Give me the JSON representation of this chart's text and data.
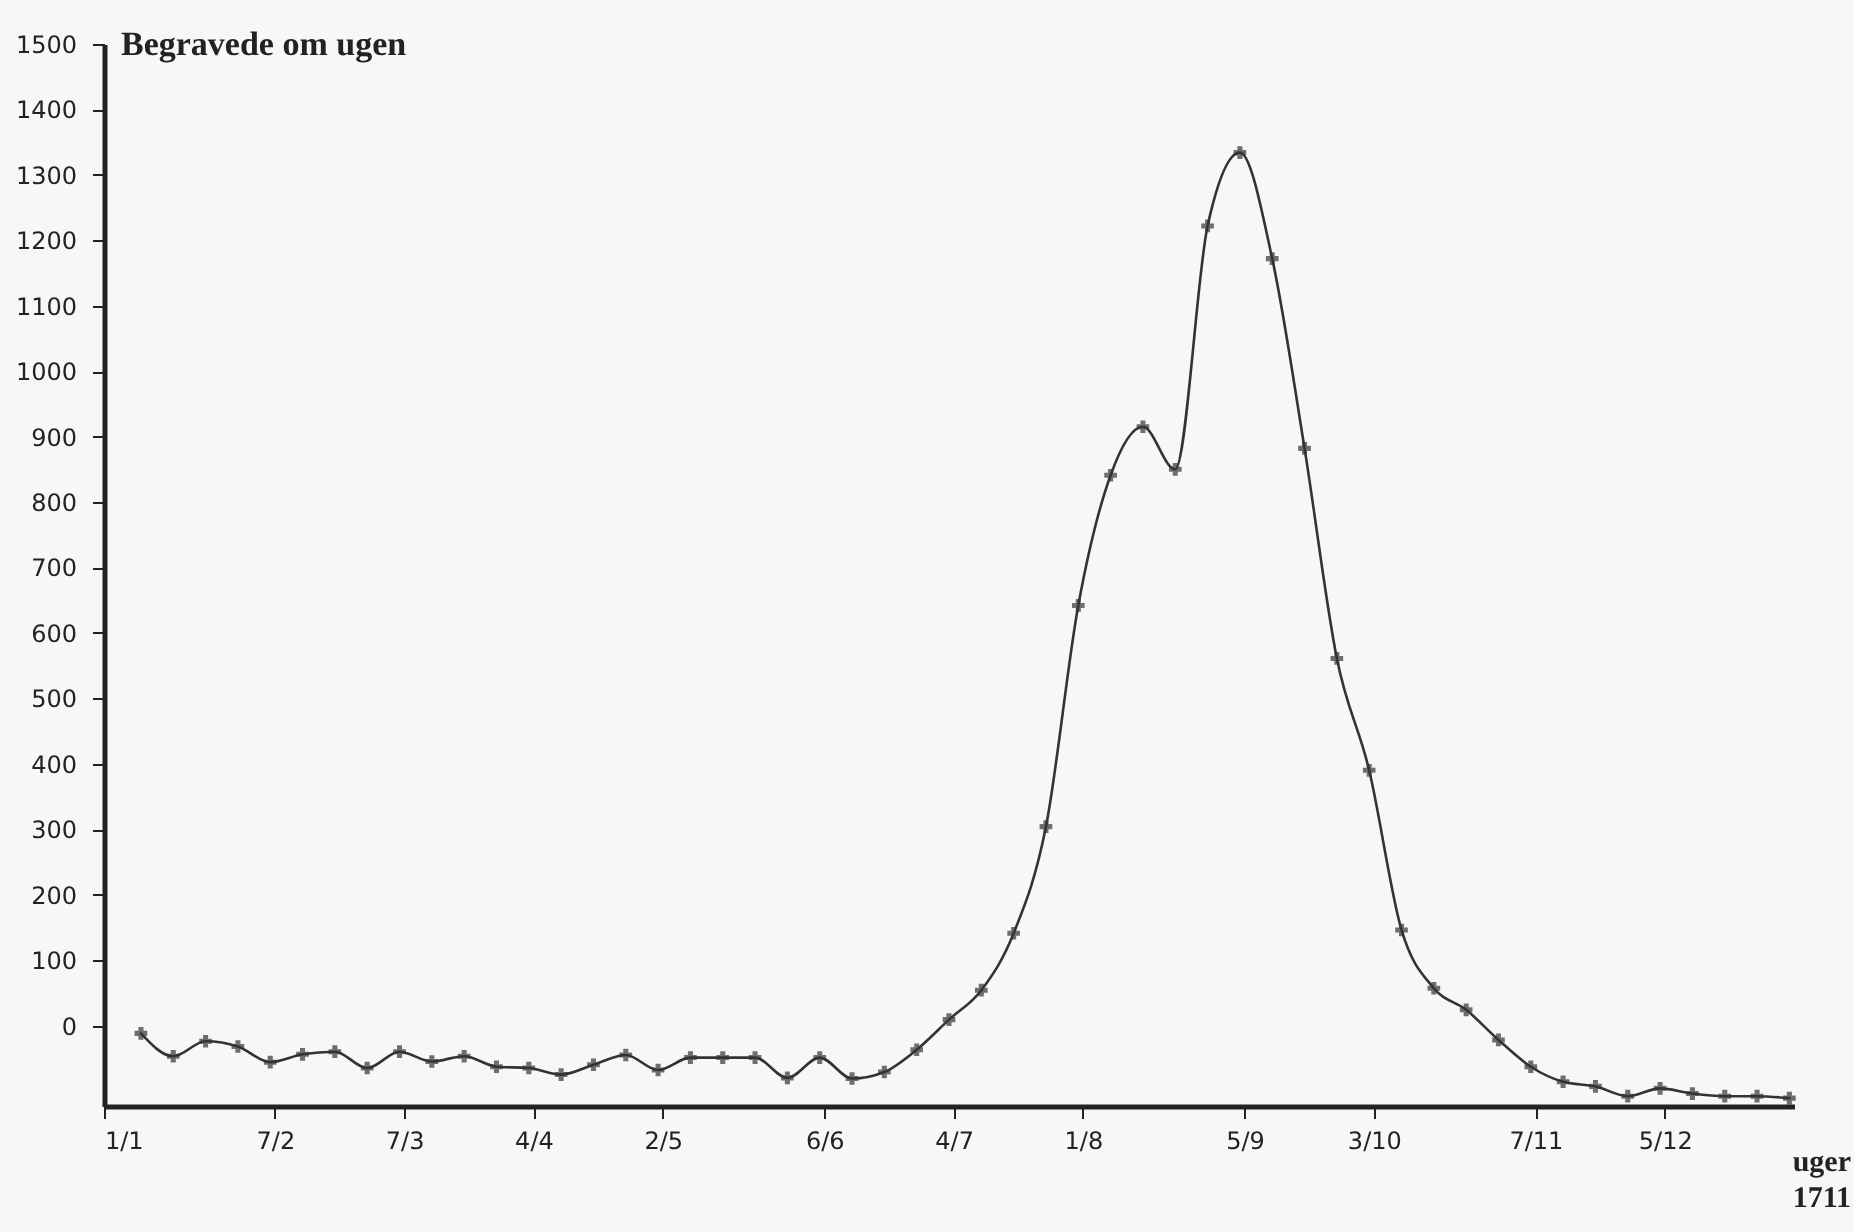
{
  "chart_data": {
    "type": "line",
    "ylabel": "Begravede om ugen",
    "xlabel": "uger 1711",
    "x": [
      "1711-01-09",
      "1711-01-16",
      "1711-01-23",
      "1711-01-30",
      "1711-02-06",
      "1711-02-13",
      "1711-02-20",
      "1711-02-27",
      "1711-03-06",
      "1711-03-13",
      "1711-03-20",
      "1711-03-27",
      "1711-04-03",
      "1711-04-10",
      "1711-04-17",
      "1711-04-24",
      "1711-05-01",
      "1711-05-08",
      "1711-05-15",
      "1711-05-22",
      "1711-05-29",
      "1711-06-05",
      "1711-06-12",
      "1711-06-19",
      "1711-06-26",
      "1711-07-03",
      "1711-07-10",
      "1711-07-17",
      "1711-07-24",
      "1711-07-31",
      "1711-08-07",
      "1711-08-14",
      "1711-08-21",
      "1711-08-28",
      "1711-09-04",
      "1711-09-11",
      "1711-09-18",
      "1711-09-25",
      "1711-10-02",
      "1711-10-09",
      "1711-10-16",
      "1711-10-23",
      "1711-10-30",
      "1711-11-06",
      "1711-11-13",
      "1711-11-20",
      "1711-11-27",
      "1711-12-04",
      "1711-12-11",
      "1711-12-18",
      "1711-12-25",
      "1712-01-01"
    ],
    "series": [
      {
        "color": "#333333",
        "values": [
          -12,
          -47,
          -24,
          -32,
          -56,
          -44,
          -40,
          -65,
          -40,
          -55,
          -47,
          -63,
          -65,
          -75,
          -60,
          -45,
          -68,
          -49,
          -49,
          -49,
          -80,
          -49,
          -81,
          -71,
          -37,
          9,
          54,
          141,
          304,
          642,
          841,
          915,
          850,
          1222,
          1334,
          1172,
          882,
          561,
          390,
          146,
          57,
          24,
          -22,
          -63,
          -86,
          -93,
          -108,
          -96,
          -104,
          -108,
          -108,
          -111
        ]
      }
    ],
    "ylim": [
      -123,
      1500
    ],
    "yticks": [
      0,
      100,
      200,
      300,
      400,
      500,
      600,
      700,
      800,
      900,
      1000,
      1100,
      1200,
      1300,
      1400,
      1500
    ],
    "xlim": [
      "1711-01-01",
      "1712-01-02"
    ],
    "xticks": [
      {
        "value": "1711-01-01",
        "label": "1/1"
      },
      {
        "value": "1711-02-07",
        "label": "7/2"
      },
      {
        "value": "1711-03-07",
        "label": "7/3"
      },
      {
        "value": "1711-04-04",
        "label": "4/4"
      },
      {
        "value": "1711-05-02",
        "label": "2/5"
      },
      {
        "value": "1711-06-06",
        "label": "6/6"
      },
      {
        "value": "1711-07-04",
        "label": "4/7"
      },
      {
        "value": "1711-08-01",
        "label": "1/8"
      },
      {
        "value": "1711-09-05",
        "label": "5/9"
      },
      {
        "value": "1711-10-03",
        "label": "3/10"
      },
      {
        "value": "1711-11-07",
        "label": "7/11"
      },
      {
        "value": "1711-12-05",
        "label": "5/12"
      }
    ],
    "grid": false,
    "marker": "cross",
    "line_style": "solid"
  }
}
